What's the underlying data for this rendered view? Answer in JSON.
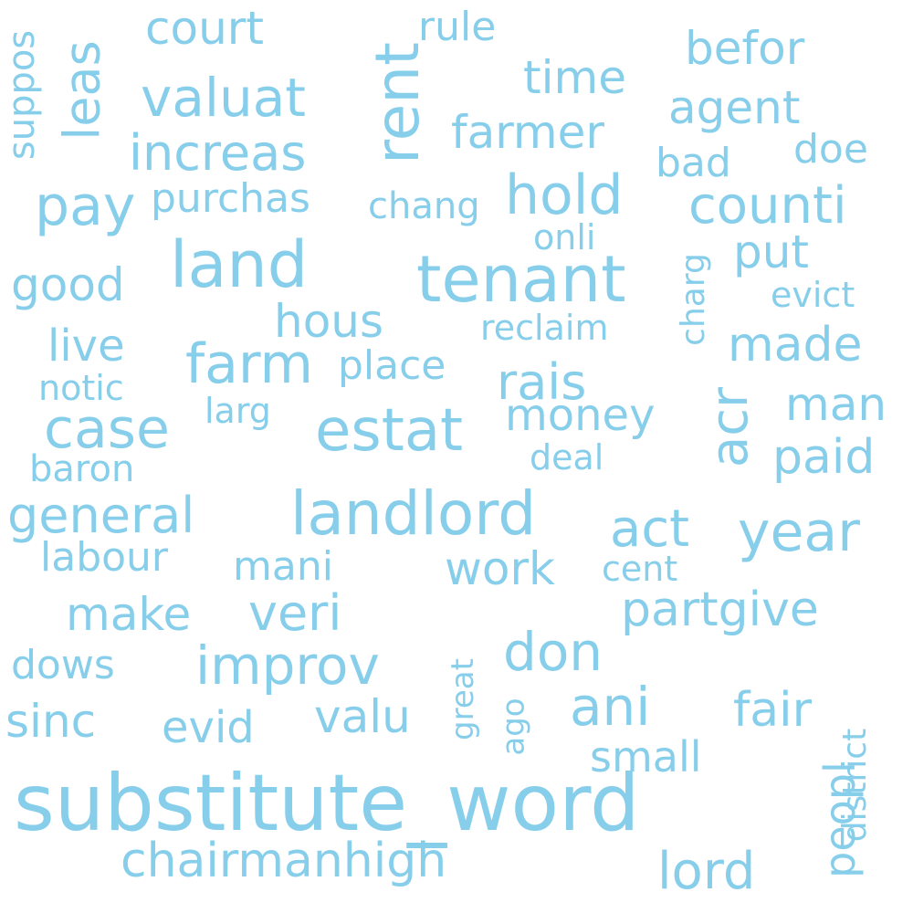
{
  "style": {
    "word_color": "#87ceeb",
    "background": "#ffffff"
  },
  "words": [
    "substitute_word",
    "tenant",
    "land",
    "landlord",
    "estat",
    "rent",
    "hold",
    "farm",
    "pay",
    "valuat",
    "increas",
    "counti",
    "leas",
    "acr",
    "year",
    "case",
    "improv",
    "ani",
    "general",
    "act",
    "rais",
    "don",
    "court",
    "befor",
    "time",
    "agent",
    "farmer",
    "purchas",
    "good",
    "live",
    "hous",
    "made",
    "place",
    "money",
    "man",
    "paid",
    "veri",
    "make",
    "partgive",
    "fair",
    "valu",
    "sinc",
    "evid",
    "dows",
    "small",
    "chairmanhigh",
    "lord",
    "peopl",
    "district",
    "work",
    "labour",
    "mani",
    "cent",
    "great",
    "ago",
    "put",
    "doe",
    "bad",
    "rule",
    "suppos",
    "chang",
    "onli",
    "charg",
    "evict",
    "reclaim",
    "notic",
    "larg",
    "deal",
    "baron"
  ]
}
